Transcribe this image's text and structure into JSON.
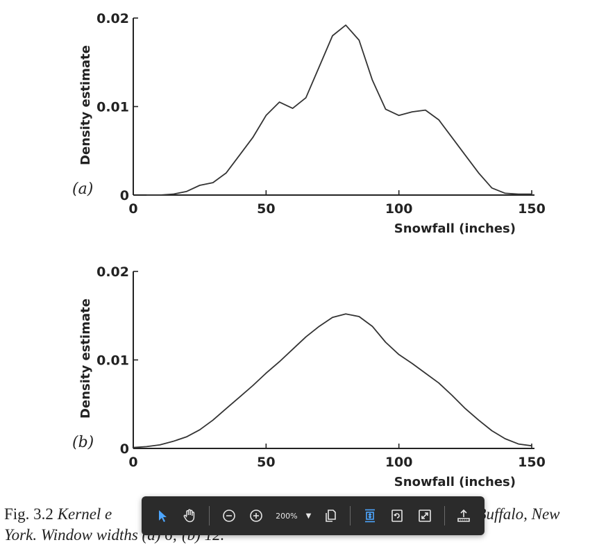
{
  "chart_data": [
    {
      "type": "line",
      "panel_label": "(a)",
      "xlabel": "Snowfall (inches)",
      "ylabel": "Density estimate",
      "xlim": [
        0,
        150
      ],
      "ylim": [
        0,
        0.02
      ],
      "xticks": [
        "0",
        "50",
        "100",
        "150"
      ],
      "yticks": [
        "0",
        "0.01",
        "0.02"
      ],
      "x": [
        5,
        10,
        15,
        20,
        25,
        30,
        35,
        40,
        45,
        50,
        55,
        60,
        65,
        70,
        75,
        80,
        85,
        90,
        95,
        100,
        105,
        110,
        115,
        120,
        125,
        130,
        135,
        140,
        145,
        150
      ],
      "y": [
        0,
        0,
        0.0001,
        0.0004,
        0.0011,
        0.0014,
        0.0025,
        0.0045,
        0.0065,
        0.009,
        0.0105,
        0.0098,
        0.011,
        0.0145,
        0.018,
        0.0192,
        0.0175,
        0.013,
        0.0097,
        0.009,
        0.0094,
        0.0096,
        0.0085,
        0.0065,
        0.0045,
        0.0025,
        0.0008,
        0.0002,
        0.0001,
        0.0001
      ]
    },
    {
      "type": "line",
      "panel_label": "(b)",
      "xlabel": "Snowfall (inches)",
      "ylabel": "Density estimate",
      "xlim": [
        0,
        150
      ],
      "ylim": [
        0,
        0.02
      ],
      "xticks": [
        "0",
        "50",
        "100",
        "150"
      ],
      "yticks": [
        "0",
        "0.01",
        "0.02"
      ],
      "x": [
        0,
        5,
        10,
        15,
        20,
        25,
        30,
        35,
        40,
        45,
        50,
        55,
        60,
        65,
        70,
        75,
        80,
        85,
        90,
        95,
        100,
        105,
        110,
        115,
        120,
        125,
        130,
        135,
        140,
        145,
        150
      ],
      "y": [
        0.0001,
        0.0002,
        0.0004,
        0.0008,
        0.0013,
        0.0021,
        0.0032,
        0.0045,
        0.0058,
        0.0071,
        0.0085,
        0.0098,
        0.0112,
        0.0126,
        0.0138,
        0.0148,
        0.0152,
        0.0149,
        0.0138,
        0.012,
        0.0106,
        0.0096,
        0.0085,
        0.0074,
        0.006,
        0.0045,
        0.0032,
        0.002,
        0.0011,
        0.0005,
        0.0003
      ]
    }
  ],
  "caption": {
    "fig_label": "Fig. 3.2",
    "left_text": "Kernel e",
    "right_text": "at Buffalo, New",
    "line2": "York. Window widths (a) 6; (b) 12."
  },
  "toolbar": {
    "zoom_value": "200%",
    "active_color": "#4da6ff",
    "icon_color": "#e6e6e6",
    "buttons": [
      "select-cursor-icon",
      "hand-pan-icon",
      "zoom-out-icon",
      "zoom-in-icon",
      "zoom-dropdown",
      "page-copy-icon",
      "fit-height-icon",
      "rotate-page-icon",
      "full-screen-icon",
      "share-upload-icon"
    ]
  }
}
